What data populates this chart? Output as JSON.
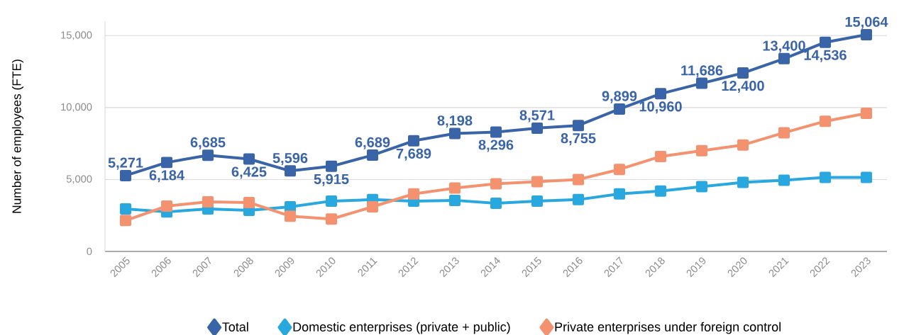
{
  "chart_data": {
    "type": "line",
    "ylabel": "Number of employees (FTE)",
    "categories": [
      "2005",
      "2006",
      "2007",
      "2008",
      "2009",
      "2010",
      "2011",
      "2012",
      "2013",
      "2014",
      "2015",
      "2016",
      "2017",
      "2018",
      "2019",
      "2020",
      "2021",
      "2022",
      "2023"
    ],
    "series": [
      {
        "name": "Total",
        "color": "#3a64a8",
        "values": [
          5271,
          6184,
          6685,
          6425,
          5596,
          5915,
          6689,
          7689,
          8198,
          8296,
          8571,
          8755,
          9899,
          10960,
          11686,
          12400,
          13400,
          14536,
          15064
        ],
        "value_labels": [
          "5,271",
          "6,184",
          "6,685",
          "6,425",
          "5,596",
          "5,915",
          "6,689",
          "7,689",
          "8,198",
          "8,296",
          "8,571",
          "8,755",
          "9,899",
          "10,960",
          "11,686",
          "12,400",
          "13,400",
          "14,536",
          "15,064"
        ]
      },
      {
        "name": "Domestic enterprises (private + public)",
        "color": "#29a8e0",
        "values": [
          2950,
          2750,
          2950,
          2850,
          3100,
          3500,
          3600,
          3500,
          3550,
          3350,
          3500,
          3600,
          4000,
          4200,
          4500,
          4800,
          4950,
          5150,
          5150
        ]
      },
      {
        "name": "Private enterprises under foreign control",
        "color": "#f4926f",
        "values": [
          2150,
          3150,
          3450,
          3400,
          2450,
          2250,
          3100,
          4000,
          4400,
          4700,
          4850,
          5000,
          5700,
          6600,
          7000,
          7400,
          8250,
          9050,
          9600
        ]
      }
    ],
    "ylim": [
      0,
      16000
    ],
    "yticks": [
      {
        "value": 0,
        "label": "0"
      },
      {
        "value": 5000,
        "label": "5,000"
      },
      {
        "value": 10000,
        "label": "10,000"
      },
      {
        "value": 15000,
        "label": "15,000"
      }
    ],
    "grid": "y",
    "legend": "bottom",
    "marker": "square",
    "line_style": "solid"
  }
}
